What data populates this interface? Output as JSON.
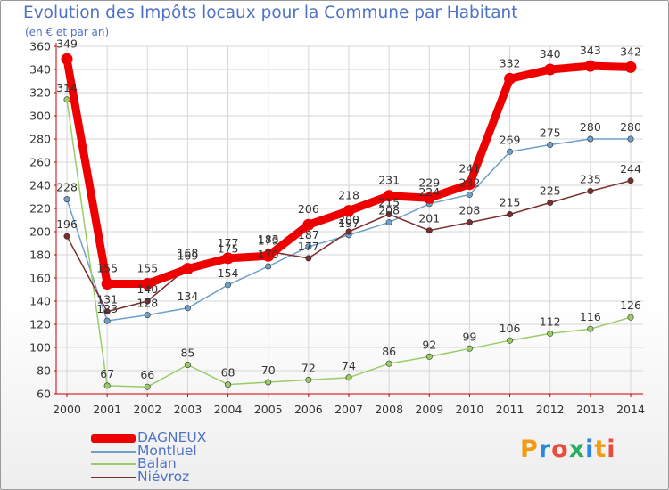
{
  "chart_data": {
    "type": "line",
    "title": "Evolution des Impôts locaux pour la Commune par Habitant",
    "subtitle": "(en € et par an)",
    "xlabel": "",
    "ylabel": "",
    "categories": [
      "2000",
      "2001",
      "2002",
      "2003",
      "2004",
      "2005",
      "2006",
      "2007",
      "2008",
      "2009",
      "2010",
      "2011",
      "2012",
      "2013",
      "2014"
    ],
    "ylim": [
      60,
      360
    ],
    "yticks": [
      60,
      80,
      100,
      120,
      140,
      160,
      180,
      200,
      220,
      240,
      260,
      280,
      300,
      320,
      340,
      360
    ],
    "grid": true,
    "legend_position": "bottom-left",
    "series": [
      {
        "name": "Montluel",
        "color": "#6ea0cc",
        "values": [
          228,
          123,
          128,
          134,
          154,
          170,
          187,
          197,
          208,
          224,
          232,
          269,
          275,
          280,
          280
        ]
      },
      {
        "name": "Balan",
        "color": "#99cc66",
        "values": [
          314,
          67,
          66,
          85,
          68,
          70,
          72,
          74,
          86,
          92,
          99,
          106,
          112,
          116,
          126
        ]
      },
      {
        "name": "Niévroz",
        "color": "#7a2d2d",
        "values": [
          196,
          131,
          140,
          169,
          175,
          183,
          177,
          200,
          215,
          201,
          208,
          215,
          225,
          235,
          244
        ]
      },
      {
        "name": "DAGNEUX",
        "color": "#ee0000",
        "values": [
          349,
          155,
          155,
          168,
          177,
          179,
          206,
          218,
          231,
          229,
          241,
          332,
          340,
          343,
          342
        ]
      }
    ]
  },
  "legend": {
    "items": [
      {
        "label": "DAGNEUX",
        "color": "#ee0000"
      },
      {
        "label": "Montluel",
        "color": "#6ea0cc"
      },
      {
        "label": "Balan",
        "color": "#99cc66"
      },
      {
        "label": "Niévroz",
        "color": "#7a2d2d"
      }
    ]
  },
  "brand": {
    "text": "Proxiti"
  }
}
